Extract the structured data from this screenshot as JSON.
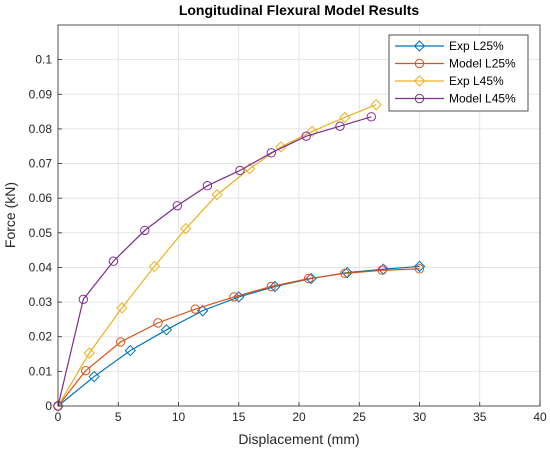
{
  "chart_data": {
    "type": "line",
    "title": "Longitudinal Flexural Model Results",
    "xlabel": "Displacement (mm)",
    "ylabel": "Force (kN)",
    "xlim": [
      0,
      40
    ],
    "ylim": [
      0,
      0.11
    ],
    "xticks": [
      0,
      5,
      10,
      15,
      20,
      25,
      30,
      35,
      40
    ],
    "xtick_labels": [
      "0",
      "5",
      "10",
      "15",
      "20",
      "25",
      "30",
      "35",
      "40"
    ],
    "yticks": [
      0,
      0.01,
      0.02,
      0.03,
      0.04,
      0.05,
      0.06,
      0.07,
      0.08,
      0.09,
      0.1
    ],
    "ytick_labels": [
      "0",
      "0.01",
      "0.02",
      "0.03",
      "0.04",
      "0.05",
      "0.06",
      "0.07",
      "0.08",
      "0.09",
      "0.1"
    ],
    "grid": true,
    "legend_position": "top-right",
    "series": [
      {
        "name": "Exp L25%",
        "color": "#0072BD",
        "marker": "diamond",
        "points": [
          [
            0,
            0
          ],
          [
            3,
            0.0085
          ],
          [
            6,
            0.016
          ],
          [
            9,
            0.022
          ],
          [
            12,
            0.0275
          ],
          [
            15,
            0.0315
          ],
          [
            18,
            0.0345
          ],
          [
            21,
            0.0368
          ],
          [
            24,
            0.0385
          ],
          [
            27,
            0.0395
          ],
          [
            30,
            0.0403
          ]
        ]
      },
      {
        "name": "Model L25%",
        "color": "#D95319",
        "marker": "circle",
        "points": [
          [
            0,
            0
          ],
          [
            2.3,
            0.0102
          ],
          [
            5.2,
            0.0185
          ],
          [
            8.3,
            0.024
          ],
          [
            11.4,
            0.028
          ],
          [
            14.6,
            0.0315
          ],
          [
            17.7,
            0.0345
          ],
          [
            20.8,
            0.0368
          ],
          [
            23.8,
            0.0383
          ],
          [
            26.9,
            0.0392
          ],
          [
            30,
            0.0396
          ]
        ]
      },
      {
        "name": "Exp L45%",
        "color": "#EDB120",
        "marker": "diamond",
        "points": [
          [
            0,
            0
          ],
          [
            2.6,
            0.0153
          ],
          [
            5.3,
            0.0283
          ],
          [
            8,
            0.0403
          ],
          [
            10.6,
            0.0512
          ],
          [
            13.2,
            0.061
          ],
          [
            15.9,
            0.0685
          ],
          [
            18.5,
            0.0748
          ],
          [
            21.1,
            0.0793
          ],
          [
            23.8,
            0.0833
          ],
          [
            26.4,
            0.087
          ]
        ]
      },
      {
        "name": "Model L45%",
        "color": "#7E2F8E",
        "marker": "circle",
        "points": [
          [
            0,
            0
          ],
          [
            2.1,
            0.0308
          ],
          [
            4.6,
            0.0418
          ],
          [
            7.2,
            0.0507
          ],
          [
            9.9,
            0.0578
          ],
          [
            12.4,
            0.0636
          ],
          [
            15.1,
            0.068
          ],
          [
            17.7,
            0.0731
          ],
          [
            20.6,
            0.0779
          ],
          [
            23.4,
            0.0808
          ],
          [
            26,
            0.0835
          ]
        ]
      }
    ]
  }
}
